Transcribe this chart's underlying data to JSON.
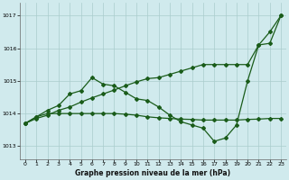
{
  "title": "Graphe pression niveau de la mer (hPa)",
  "bg_color": "#d0eaed",
  "grid_color": "#aacccc",
  "line_color": "#1a5c1a",
  "xlim": [
    -0.5,
    23.5
  ],
  "ylim": [
    1012.6,
    1017.4
  ],
  "yticks": [
    1013,
    1014,
    1015,
    1016,
    1017
  ],
  "xticks": [
    0,
    1,
    2,
    3,
    4,
    5,
    6,
    7,
    8,
    9,
    10,
    11,
    12,
    13,
    14,
    15,
    16,
    17,
    18,
    19,
    20,
    21,
    22,
    23
  ],
  "line_diagonal_x": [
    0,
    1,
    2,
    3,
    4,
    5,
    6,
    7,
    8,
    9,
    10,
    11,
    12,
    13,
    14,
    15,
    16,
    17,
    18,
    19,
    20,
    21,
    22,
    23
  ],
  "line_diagonal_y": [
    1013.7,
    1013.85,
    1013.95,
    1014.1,
    1014.2,
    1014.35,
    1014.48,
    1014.6,
    1014.72,
    1014.85,
    1014.97,
    1015.07,
    1015.1,
    1015.2,
    1015.3,
    1015.4,
    1015.5,
    1015.5,
    1015.5,
    1015.5,
    1015.5,
    1016.1,
    1016.5,
    1017.0
  ],
  "line_flat_x": [
    0,
    1,
    2,
    3,
    4,
    5,
    6,
    7,
    8,
    9,
    10,
    11,
    12,
    13,
    14,
    15,
    16,
    17,
    18,
    19,
    20,
    21,
    22,
    23
  ],
  "line_flat_y": [
    1013.7,
    1013.9,
    1014.0,
    1014.0,
    1014.0,
    1014.0,
    1014.0,
    1014.0,
    1014.0,
    1013.98,
    1013.95,
    1013.9,
    1013.87,
    1013.85,
    1013.83,
    1013.82,
    1013.8,
    1013.8,
    1013.8,
    1013.8,
    1013.82,
    1013.83,
    1013.85,
    1013.85
  ],
  "line_volatile_x": [
    0,
    1,
    2,
    3,
    4,
    5,
    6,
    7,
    8,
    9,
    10,
    11,
    12,
    13,
    14,
    15,
    16,
    17,
    18,
    19,
    20,
    21,
    22,
    23
  ],
  "line_volatile_y": [
    1013.7,
    1013.9,
    1014.1,
    1014.25,
    1014.6,
    1014.7,
    1015.1,
    1014.9,
    1014.85,
    1014.65,
    1014.45,
    1014.4,
    1014.2,
    1013.95,
    1013.75,
    1013.65,
    1013.55,
    1013.15,
    1013.25,
    1013.65,
    1015.0,
    1016.1,
    1016.15,
    1017.0
  ]
}
